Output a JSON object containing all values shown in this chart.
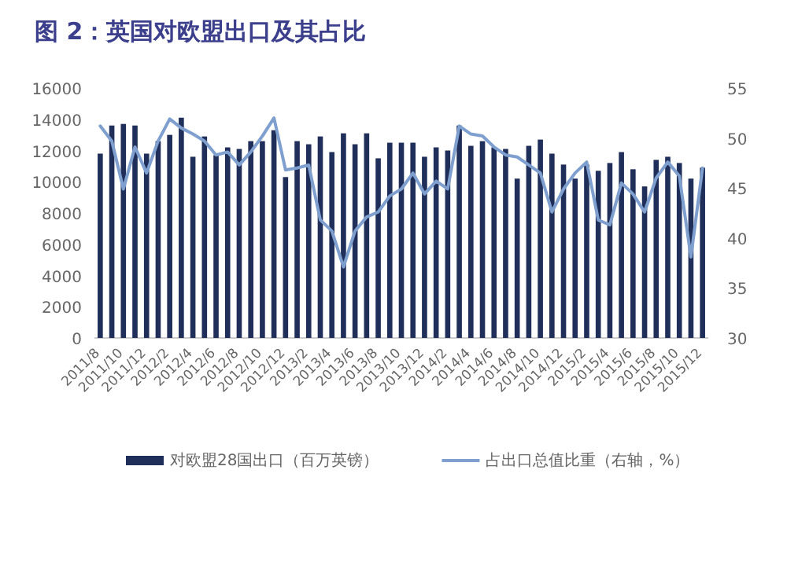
{
  "chart_data": {
    "type": "bar",
    "title": "图 2：英国对欧盟出口及其占比",
    "categories": [
      "2011/8",
      null,
      "2011/10",
      null,
      "2011/12",
      null,
      "2012/2",
      null,
      "2012/4",
      null,
      "2012/6",
      null,
      "2012/8",
      null,
      "2012/10",
      null,
      "2012/12",
      null,
      "2013/2",
      null,
      "2013/4",
      null,
      "2013/6",
      null,
      "2013/8",
      null,
      "2013/10",
      null,
      "2013/12",
      null,
      "2014/2",
      null,
      "2014/4",
      null,
      "2014/6",
      null,
      "2014/8",
      null,
      "2014/10",
      null,
      "2014/12",
      null,
      "2015/2",
      null,
      "2015/4",
      null,
      "2015/6",
      null,
      "2015/8",
      null,
      "2015/10",
      null,
      "2015/12"
    ],
    "series": [
      {
        "name": "对欧盟28国出口（百万英镑）",
        "color": "#1f2f5a",
        "values": [
          11800,
          13600,
          13700,
          13600,
          11800,
          12600,
          13000,
          14100,
          11600,
          12900,
          11700,
          12200,
          12100,
          12600,
          12600,
          13300,
          10300,
          12600,
          12400,
          12900,
          11900,
          13100,
          12400,
          13100,
          11500,
          12500,
          12500,
          12500,
          11600,
          12200,
          12000,
          13600,
          12300,
          12600,
          12200,
          12100,
          10200,
          12300,
          12700,
          11800,
          11100,
          10200,
          11100,
          10700,
          11200,
          11900,
          10800,
          9700,
          11400,
          11600,
          11200,
          10200,
          10900
        ]
      },
      {
        "name": "占出口总值比重（右轴，%）",
        "type": "line",
        "axis": "y2",
        "color": "#7f9fcf",
        "values": [
          51.2,
          49.7,
          44.9,
          49.1,
          46.5,
          49.7,
          51.9,
          51.0,
          50.4,
          49.7,
          48.3,
          48.6,
          47.3,
          48.6,
          50.2,
          52.0,
          46.8,
          47.0,
          47.3,
          41.8,
          40.7,
          37.1,
          40.7,
          42.1,
          42.6,
          44.2,
          44.9,
          46.5,
          44.4,
          45.7,
          44.9,
          51.2,
          50.4,
          50.2,
          49.1,
          48.3,
          48.1,
          47.3,
          46.5,
          42.6,
          44.9,
          46.5,
          47.6,
          41.8,
          41.3,
          45.5,
          44.4,
          42.6,
          46.0,
          47.6,
          46.2,
          38.1,
          47.0
        ]
      }
    ],
    "ylim": [
      0,
      16000
    ],
    "yticks": [
      0,
      2000,
      4000,
      6000,
      8000,
      10000,
      12000,
      14000,
      16000
    ],
    "y2lim": [
      30,
      55
    ],
    "y2ticks": [
      30,
      35,
      40,
      45,
      50,
      55
    ],
    "legend": "bottom",
    "marker": "none",
    "line_style": "solid",
    "grid": false
  }
}
